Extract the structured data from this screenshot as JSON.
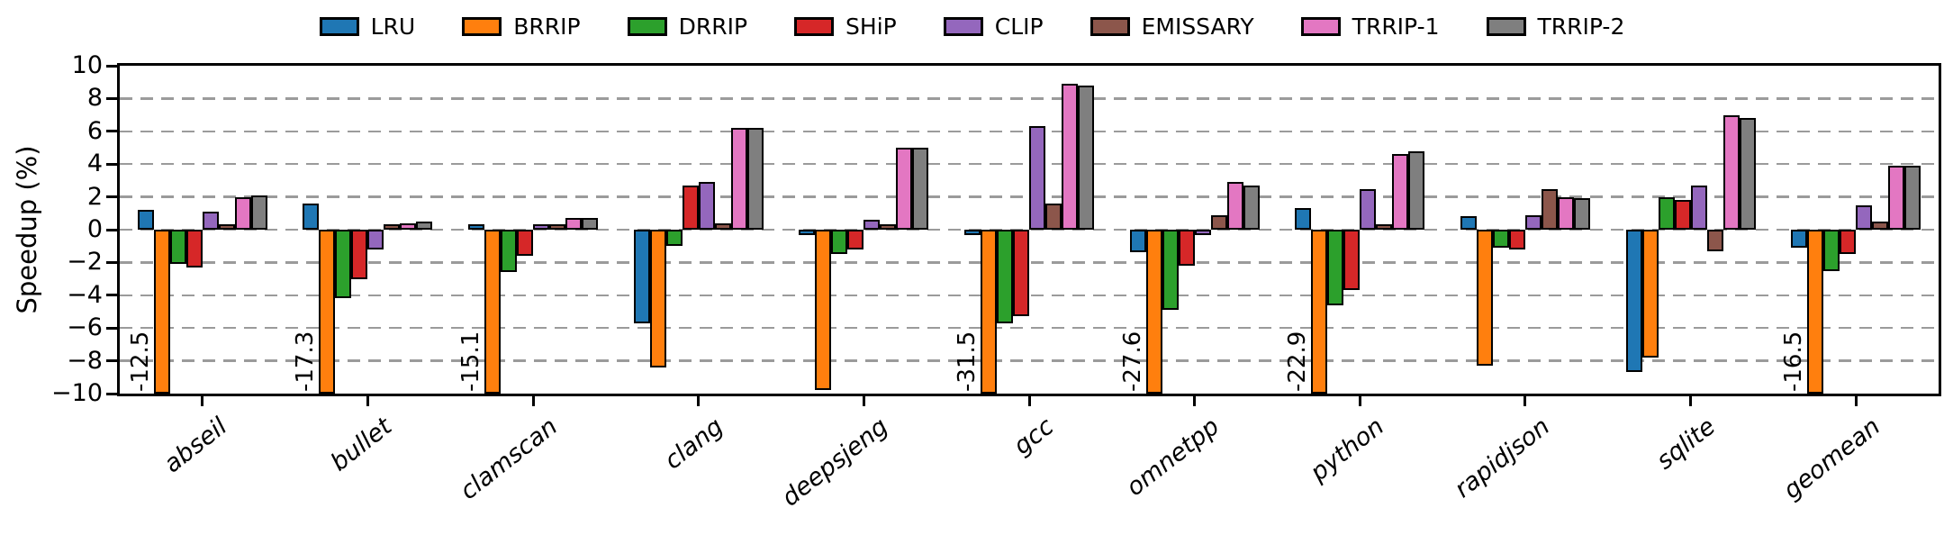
{
  "chart_data": {
    "type": "bar",
    "title": "",
    "xlabel": "",
    "ylabel": "Speedup (%)",
    "ylim": [
      -10,
      10
    ],
    "yticks": [
      10,
      8,
      6,
      4,
      2,
      0,
      -2,
      -4,
      -6,
      -8,
      -10
    ],
    "grid": "dashed horizontal",
    "legend_position": "top center",
    "categories": [
      "abseil",
      "bullet",
      "clamscan",
      "clang",
      "deepsjeng",
      "gcc",
      "omnetpp",
      "python",
      "rapidjson",
      "sqlite",
      "geomean"
    ],
    "series": [
      {
        "name": "LRU",
        "color": "#1f77b4",
        "values": [
          1.2,
          1.6,
          0.1,
          -5.7,
          -0.1,
          -0.1,
          -1.4,
          1.3,
          0.8,
          -8.7,
          -1.1
        ]
      },
      {
        "name": "BRRIP",
        "color": "#ff7f0e",
        "values": [
          -12.5,
          -17.3,
          -15.1,
          -8.4,
          -9.8,
          -31.5,
          -27.6,
          -22.9,
          -8.3,
          -7.8,
          -16.5
        ]
      },
      {
        "name": "DRRIP",
        "color": "#2ca02c",
        "values": [
          -2.1,
          -4.2,
          -2.6,
          -1.0,
          -1.5,
          -5.7,
          -4.9,
          -4.6,
          -1.1,
          2.0,
          -2.5
        ]
      },
      {
        "name": "SHiP",
        "color": "#d62728",
        "values": [
          -2.3,
          -3.0,
          -1.6,
          2.7,
          -1.2,
          -5.3,
          -2.2,
          -3.7,
          -1.2,
          1.8,
          -1.5
        ]
      },
      {
        "name": "CLIP",
        "color": "#9467bd",
        "values": [
          1.1,
          -1.2,
          0.1,
          2.9,
          0.6,
          6.3,
          -0.1,
          2.5,
          0.9,
          2.7,
          1.5
        ]
      },
      {
        "name": "EMISSARY",
        "color": "#8c564b",
        "values": [
          0.2,
          0.1,
          0.2,
          0.4,
          0.1,
          1.6,
          0.9,
          0.2,
          2.5,
          -1.3,
          0.5
        ]
      },
      {
        "name": "TRRIP-1",
        "color": "#e377c2",
        "values": [
          2.0,
          0.4,
          0.7,
          6.2,
          5.0,
          8.9,
          2.9,
          4.6,
          2.0,
          7.0,
          3.9
        ]
      },
      {
        "name": "TRRIP-2",
        "color": "#7f7f7f",
        "values": [
          2.1,
          0.5,
          0.7,
          6.2,
          5.0,
          8.8,
          2.7,
          4.8,
          1.9,
          6.8,
          3.9
        ]
      }
    ],
    "clipped_bar_labels": [
      {
        "series": "BRRIP",
        "category": "abseil",
        "text": "-12.5"
      },
      {
        "series": "BRRIP",
        "category": "bullet",
        "text": "-17.3"
      },
      {
        "series": "BRRIP",
        "category": "clamscan",
        "text": "-15.1"
      },
      {
        "series": "BRRIP",
        "category": "gcc",
        "text": "-31.5"
      },
      {
        "series": "BRRIP",
        "category": "omnetpp",
        "text": "-27.6"
      },
      {
        "series": "BRRIP",
        "category": "python",
        "text": "-22.9"
      },
      {
        "series": "BRRIP",
        "category": "geomean",
        "text": "-16.5"
      }
    ]
  },
  "colors": {
    "axis": "#000000",
    "grid": "#9b9b9b",
    "background": "#ffffff",
    "bar_edge": "#000000"
  }
}
